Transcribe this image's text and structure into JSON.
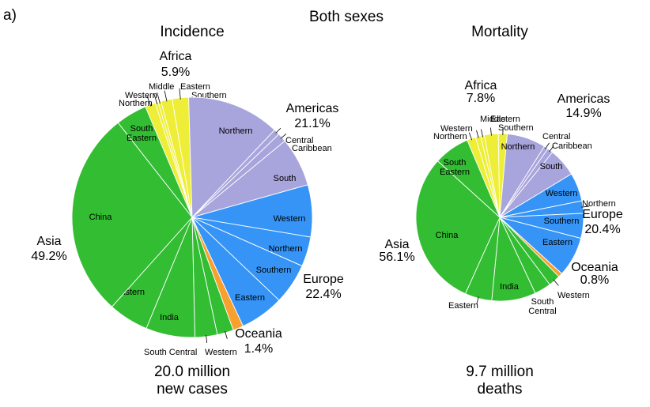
{
  "panel_label": "a)",
  "title": "Both sexes",
  "chart_data": [
    {
      "type": "pie",
      "title": "Incidence",
      "footer": [
        "20.0 million",
        "new cases"
      ],
      "unit": "percent of total",
      "colors": {
        "Africa": "#eeee38",
        "Americas": "#a8a4dc",
        "Europe": "#3594f6",
        "Oceania": "#f7a02e",
        "Asia": "#33bd33"
      },
      "groups": [
        {
          "name": "Africa",
          "value": 5.9,
          "label": "5.9%",
          "subgroups": [
            {
              "name": "Northern",
              "value": 1.4
            },
            {
              "name": "Western",
              "value": 0.4
            },
            {
              "name": "Middle",
              "value": 0.4
            },
            {
              "name": "Eastern",
              "value": 1.5
            },
            {
              "name": "Southern",
              "value": 2.2
            }
          ]
        },
        {
          "name": "Americas",
          "value": 21.1,
          "label": "21.1%",
          "subgroups": [
            {
              "name": "Northern",
              "value": 12.5
            },
            {
              "name": "Central",
              "value": 0.8
            },
            {
              "name": "Caribbean",
              "value": 1.2
            },
            {
              "name": "South",
              "value": 6.6
            }
          ]
        },
        {
          "name": "Europe",
          "value": 22.4,
          "label": "22.4%",
          "subgroups": [
            {
              "name": "Western",
              "value": 7.0
            },
            {
              "name": "Northern",
              "value": 4.0
            },
            {
              "name": "Southern",
              "value": 5.5
            },
            {
              "name": "Eastern",
              "value": 5.9
            }
          ]
        },
        {
          "name": "Oceania",
          "value": 1.4,
          "label": "1.4%",
          "subgroups": [
            {
              "name": "",
              "value": 1.4
            }
          ]
        },
        {
          "name": "Asia",
          "value": 49.2,
          "label": "49.2%",
          "subgroups": [
            {
              "name": "Western",
              "value": 2.2
            },
            {
              "name": "South Central",
              "value": 3.0
            },
            {
              "name": "India",
              "value": 6.6
            },
            {
              "name": "Eastern",
              "value": 5.4
            },
            {
              "name": "China",
              "value": 27.8
            },
            {
              "name": "South Eastern",
              "value": 4.2
            }
          ]
        }
      ]
    },
    {
      "type": "pie",
      "title": "Mortality",
      "footer": [
        "9.7 million",
        "deaths"
      ],
      "unit": "percent of total",
      "colors": {
        "Africa": "#eeee38",
        "Americas": "#a8a4dc",
        "Europe": "#3594f6",
        "Oceania": "#f7a02e",
        "Asia": "#33bd33"
      },
      "groups": [
        {
          "name": "Africa",
          "value": 7.8,
          "label": "7.8%",
          "subgroups": [
            {
              "name": "Northern",
              "value": 1.7
            },
            {
              "name": "Western",
              "value": 1.0
            },
            {
              "name": "Middle",
              "value": 0.7
            },
            {
              "name": "Eastern",
              "value": 2.7
            },
            {
              "name": "Southern",
              "value": 1.7
            }
          ]
        },
        {
          "name": "Americas",
          "value": 14.9,
          "label": "14.9%",
          "subgroups": [
            {
              "name": "Northern",
              "value": 7.5
            },
            {
              "name": "Central",
              "value": 0.8
            },
            {
              "name": "Caribbean",
              "value": 1.1
            },
            {
              "name": "South",
              "value": 5.5
            }
          ]
        },
        {
          "name": "Europe",
          "value": 20.4,
          "label": "20.4%",
          "subgroups": [
            {
              "name": "Western",
              "value": 5.5
            },
            {
              "name": "Northern",
              "value": 2.4
            },
            {
              "name": "Southern",
              "value": 4.8
            },
            {
              "name": "Eastern",
              "value": 7.7
            }
          ]
        },
        {
          "name": "Oceania",
          "value": 0.8,
          "label": "0.8%",
          "subgroups": [
            {
              "name": "",
              "value": 0.8
            }
          ]
        },
        {
          "name": "Asia",
          "value": 56.1,
          "label": "56.1%",
          "subgroups": [
            {
              "name": "Western",
              "value": 2.3
            },
            {
              "name": "South Central",
              "value": 3.2
            },
            {
              "name": "India",
              "value": 8.5
            },
            {
              "name": "Eastern",
              "value": 5.2
            },
            {
              "name": "China",
              "value": 30.0
            },
            {
              "name": "South Eastern",
              "value": 6.9
            }
          ]
        }
      ]
    }
  ]
}
